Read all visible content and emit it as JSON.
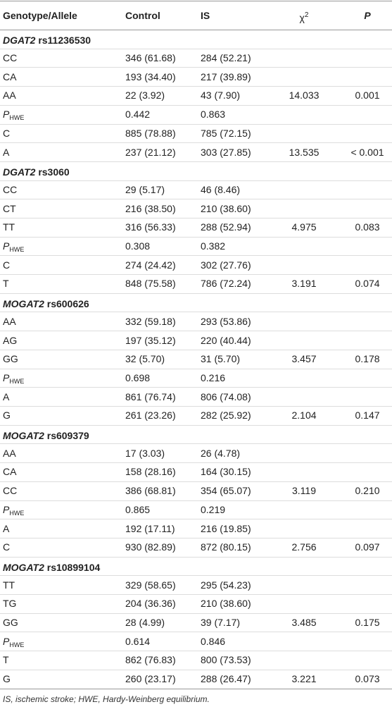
{
  "header": {
    "genotype": "Genotype/Allele",
    "control": "Control",
    "is": "IS",
    "chi": "χ",
    "chi_sup": "2",
    "p": "P"
  },
  "sections": [
    {
      "gene": "DGAT2",
      "snp": "rs11236530",
      "rows": [
        {
          "label": "CC",
          "control": "346 (61.68)",
          "is": "284 (52.21)"
        },
        {
          "label": "CA",
          "control": "193 (34.40)",
          "is": "217 (39.89)"
        },
        {
          "label": "AA",
          "control": "22 (3.92)",
          "is": "43 (7.90)",
          "chi": "14.033",
          "p": "0.001"
        },
        {
          "label": "P",
          "label_sub": "HWE",
          "control": "0.442",
          "is": "0.863"
        },
        {
          "label": "C",
          "control": "885 (78.88)",
          "is": "785 (72.15)"
        },
        {
          "label": "A",
          "control": "237 (21.12)",
          "is": "303 (27.85)",
          "chi": "13.535",
          "p": "< 0.001"
        }
      ]
    },
    {
      "gene": "DGAT2",
      "snp": "rs3060",
      "rows": [
        {
          "label": "CC",
          "control": "29 (5.17)",
          "is": "46 (8.46)"
        },
        {
          "label": "CT",
          "control": "216 (38.50)",
          "is": "210 (38.60)"
        },
        {
          "label": "TT",
          "control": "316 (56.33)",
          "is": "288 (52.94)",
          "chi": "4.975",
          "p": "0.083"
        },
        {
          "label": "P",
          "label_sub": "HWE",
          "control": "0.308",
          "is": "0.382"
        },
        {
          "label": "C",
          "control": "274 (24.42)",
          "is": "302 (27.76)"
        },
        {
          "label": "T",
          "control": "848 (75.58)",
          "is": "786 (72.24)",
          "chi": "3.191",
          "p": "0.074"
        }
      ]
    },
    {
      "gene": "MOGAT2",
      "snp": "rs600626",
      "rows": [
        {
          "label": "AA",
          "control": "332 (59.18)",
          "is": "293 (53.86)"
        },
        {
          "label": "AG",
          "control": "197 (35.12)",
          "is": "220 (40.44)"
        },
        {
          "label": "GG",
          "control": "32 (5.70)",
          "is": "31 (5.70)",
          "chi": "3.457",
          "p": "0.178"
        },
        {
          "label": "P",
          "label_sub": "HWE",
          "control": "0.698",
          "is": "0.216"
        },
        {
          "label": "A",
          "control": "861 (76.74)",
          "is": "806 (74.08)"
        },
        {
          "label": "G",
          "control": "261 (23.26)",
          "is": "282 (25.92)",
          "chi": "2.104",
          "p": "0.147"
        }
      ]
    },
    {
      "gene": "MOGAT2",
      "snp": "rs609379",
      "rows": [
        {
          "label": "AA",
          "control": "17 (3.03)",
          "is": "26 (4.78)"
        },
        {
          "label": "CA",
          "control": "158 (28.16)",
          "is": "164 (30.15)"
        },
        {
          "label": "CC",
          "control": "386 (68.81)",
          "is": "354 (65.07)",
          "chi": "3.119",
          "p": "0.210"
        },
        {
          "label": "P",
          "label_sub": "HWE",
          "control": "0.865",
          "is": "0.219"
        },
        {
          "label": "A",
          "control": "192 (17.11)",
          "is": "216 (19.85)"
        },
        {
          "label": "C",
          "control": "930 (82.89)",
          "is": "872 (80.15)",
          "chi": "2.756",
          "p": "0.097"
        }
      ]
    },
    {
      "gene": "MOGAT2",
      "snp": "rs10899104",
      "rows": [
        {
          "label": "TT",
          "control": "329 (58.65)",
          "is": "295 (54.23)"
        },
        {
          "label": "TG",
          "control": "204 (36.36)",
          "is": "210 (38.60)"
        },
        {
          "label": "GG",
          "control": "28 (4.99)",
          "is": "39 (7.17)",
          "chi": "3.485",
          "p": "0.175"
        },
        {
          "label": "P",
          "label_sub": "HWE",
          "control": "0.614",
          "is": "0.846"
        },
        {
          "label": "T",
          "control": "862 (76.83)",
          "is": "800 (73.53)"
        },
        {
          "label": "G",
          "control": "260 (23.17)",
          "is": "288 (26.47)",
          "chi": "3.221",
          "p": "0.073"
        }
      ]
    }
  ],
  "footnote": "IS, ischemic stroke; HWE, Hardy-Weinberg equilibrium."
}
